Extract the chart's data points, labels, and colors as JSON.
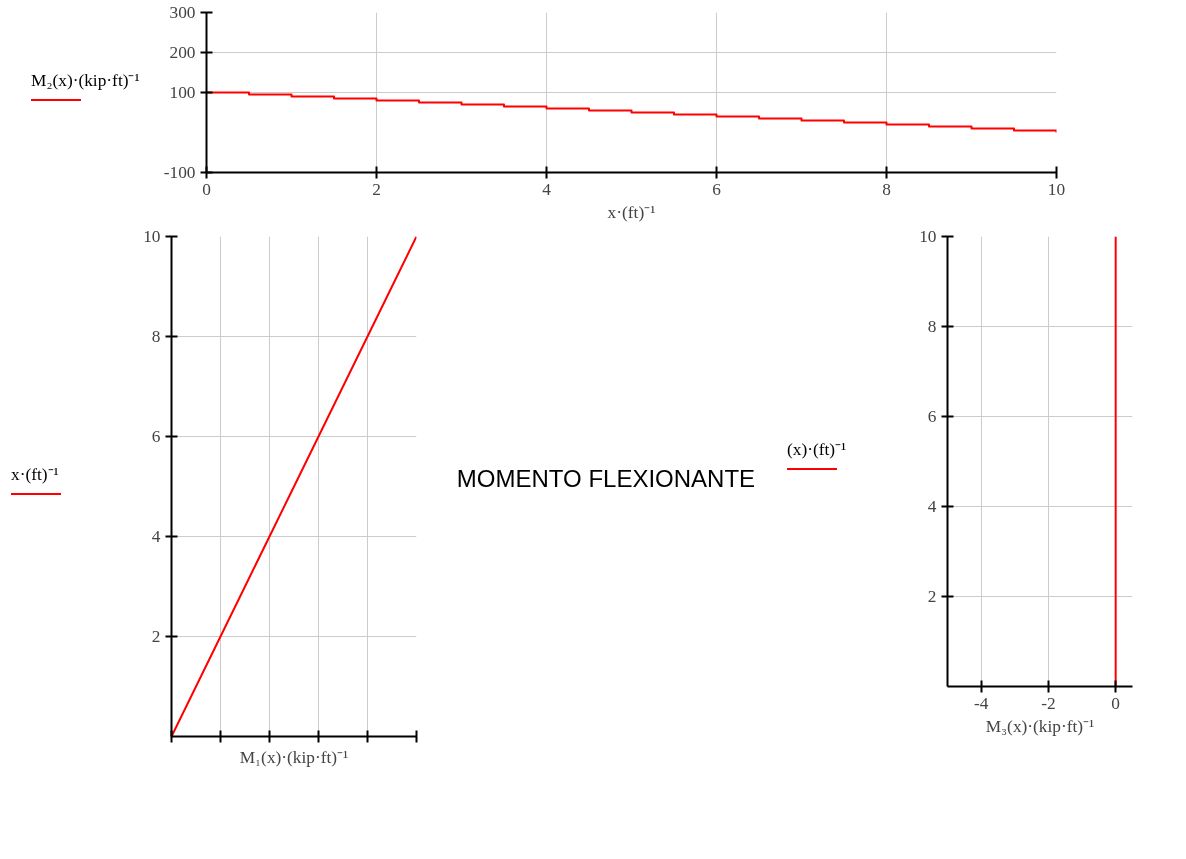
{
  "chart_data": [
    {
      "type": "step",
      "xlabel": "x·(ft)⁻¹",
      "x": [
        0,
        0.5,
        1,
        1.5,
        2,
        2.5,
        3,
        3.5,
        4,
        4.5,
        5,
        5.5,
        6,
        6.5,
        7,
        7.5,
        8,
        8.5,
        9,
        9.5,
        10
      ],
      "series": [
        {
          "name": "M₂(x)·(kip·ft)⁻¹",
          "color": "#ff0000",
          "values": [
            100,
            95,
            90,
            85,
            80,
            75,
            70,
            65,
            60,
            55,
            50,
            45,
            40,
            35,
            30,
            25,
            20,
            15,
            10,
            5,
            0
          ]
        }
      ],
      "xlim": [
        0,
        10
      ],
      "xticks": [
        0,
        2,
        4,
        6,
        8,
        10
      ],
      "ylim": [
        -100,
        300
      ],
      "yticks": [
        -100,
        100,
        200,
        300
      ],
      "grid": true,
      "legend": "left"
    },
    {
      "type": "line",
      "xlabel": "M₁(x)·(kip·ft)⁻¹",
      "categories": [
        null,
        null,
        null,
        null,
        null,
        null,
        null,
        null,
        null,
        null,
        null
      ],
      "series": [
        {
          "name": "x·(ft)⁻¹",
          "color": "#ff0000",
          "values": [
            0,
            1,
            2,
            3,
            4,
            5,
            6,
            7,
            8,
            9,
            10
          ]
        }
      ],
      "ylim": [
        0,
        10
      ],
      "yticks": [
        2,
        4,
        6,
        8,
        10
      ],
      "grid": true,
      "legend": "left",
      "tick_labels": "y"
    },
    {
      "type": "other",
      "title": "MOMENTO FLEXIONANTE"
    },
    {
      "type": "line",
      "xlabel": "M₃(x)·(kip·ft)⁻¹",
      "x": [
        0,
        0
      ],
      "series": [
        {
          "name": "(x)·(ft)⁻¹",
          "color": "#ff0000",
          "values": [
            0,
            10
          ]
        }
      ],
      "xlim": [
        -5,
        0.5
      ],
      "xticks": [
        -4,
        -2,
        0
      ],
      "ylim": [
        0,
        10
      ],
      "yticks": [
        2,
        4,
        6,
        8,
        10
      ],
      "grid": true,
      "legend": "left"
    }
  ]
}
